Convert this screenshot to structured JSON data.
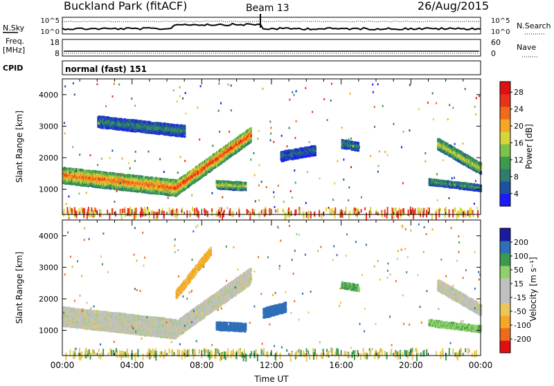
{
  "header": {
    "site": "Buckland Park (fitACF)",
    "beam": "Beam 13",
    "date": "26/Aug/2015"
  },
  "noise_panel": {
    "left_label": "N.Sky",
    "right_label": "N.Search",
    "left_ticks": [
      "10^5",
      "10^0"
    ],
    "right_ticks": [
      "10^5",
      "10^0"
    ]
  },
  "freq_panel": {
    "left_label_1": "Freq.",
    "left_label_2": "[MHz]",
    "right_label": "Nave",
    "left_ticks": [
      "18",
      "8"
    ],
    "right_ticks": [
      "60",
      "0"
    ]
  },
  "cpid_panel": {
    "label": "CPID",
    "mode_text": "normal (fast) 151"
  },
  "chart_data": [
    {
      "type": "heatmap",
      "name_hint": "power",
      "ylabel": "Slant Range [km]",
      "yticks": [
        "1000",
        "2000",
        "3000",
        "4000"
      ],
      "ylim": [
        200,
        4500
      ],
      "xlim_hours": [
        0,
        24
      ],
      "colorbar": {
        "label": "Power [dB]",
        "ticks": [
          "4",
          "8",
          "12",
          "16",
          "20",
          "24",
          "28"
        ],
        "colors": [
          "#1a1aff",
          "#1f4fa0",
          "#2e7d6e",
          "#3c9a4e",
          "#7fc24a",
          "#d8d43a",
          "#f5a623",
          "#f06a1c",
          "#e8321c",
          "#e01010"
        ]
      },
      "features": [
        {
          "t0": 0.0,
          "t1": 6.5,
          "r_start": 1500,
          "r_end": 1100,
          "width": 500,
          "value": 24
        },
        {
          "t0": 6.5,
          "t1": 10.8,
          "r_start": 1100,
          "r_end": 2800,
          "width": 450,
          "value": 26
        },
        {
          "t0": 2.0,
          "t1": 7.0,
          "r_start": 3200,
          "r_end": 2900,
          "width": 350,
          "value": 10
        },
        {
          "t0": 8.8,
          "t1": 10.5,
          "r_start": 1200,
          "r_end": 1150,
          "width": 250,
          "value": 18
        },
        {
          "t0": 12.5,
          "t1": 14.5,
          "r_start": 2100,
          "r_end": 2300,
          "width": 300,
          "value": 8
        },
        {
          "t0": 16.0,
          "t1": 17.0,
          "r_start": 2500,
          "r_end": 2400,
          "width": 250,
          "value": 10
        },
        {
          "t0": 21.5,
          "t1": 24.0,
          "r_start": 2500,
          "r_end": 1700,
          "width": 350,
          "value": 18
        },
        {
          "t0": 21.0,
          "t1": 24.0,
          "r_start": 1300,
          "r_end": 1100,
          "width": 200,
          "value": 12
        }
      ]
    },
    {
      "type": "heatmap",
      "name_hint": "velocity",
      "ylabel": "Slant Range [km]",
      "yticks": [
        "1000",
        "2000",
        "3000",
        "4000"
      ],
      "ylim": [
        200,
        4500
      ],
      "xlim_hours": [
        0,
        24
      ],
      "xlabel": "Time UT",
      "xticks": [
        "00:00",
        "04:00",
        "08:00",
        "12:00",
        "16:00",
        "20:00",
        "00:00"
      ],
      "colorbar": {
        "label": "Velocity [m s⁻¹]",
        "ticks": [
          "-200",
          "-100",
          "-50",
          "-15",
          "15",
          "50",
          "100",
          "200"
        ],
        "colors": [
          "#e01010",
          "#f06a1c",
          "#f5a623",
          "#e8c85a",
          "#c0c0c0",
          "#c0c0c0",
          "#8fd06a",
          "#3c9a4e",
          "#2e6fb8",
          "#1a1aa0"
        ]
      },
      "features": [
        {
          "t0": 0.0,
          "t1": 6.5,
          "r_start": 1500,
          "r_end": 1100,
          "width": 600,
          "value": 0
        },
        {
          "t0": 6.5,
          "t1": 10.8,
          "r_start": 1100,
          "r_end": 2800,
          "width": 500,
          "value": 0
        },
        {
          "t0": 6.5,
          "t1": 8.5,
          "r_start": 2200,
          "r_end": 3600,
          "width": 250,
          "value": -60
        },
        {
          "t0": 8.8,
          "t1": 10.5,
          "r_start": 1200,
          "r_end": 1150,
          "width": 250,
          "value": 120
        },
        {
          "t0": 11.5,
          "t1": 12.8,
          "r_start": 1600,
          "r_end": 1800,
          "width": 300,
          "value": 180
        },
        {
          "t0": 16.0,
          "t1": 17.0,
          "r_start": 2500,
          "r_end": 2400,
          "width": 200,
          "value": 60
        },
        {
          "t0": 21.5,
          "t1": 24.0,
          "r_start": 2500,
          "r_end": 1700,
          "width": 350,
          "value": 0
        },
        {
          "t0": 21.0,
          "t1": 24.0,
          "r_start": 1300,
          "r_end": 1100,
          "width": 200,
          "value": 40
        }
      ]
    }
  ]
}
